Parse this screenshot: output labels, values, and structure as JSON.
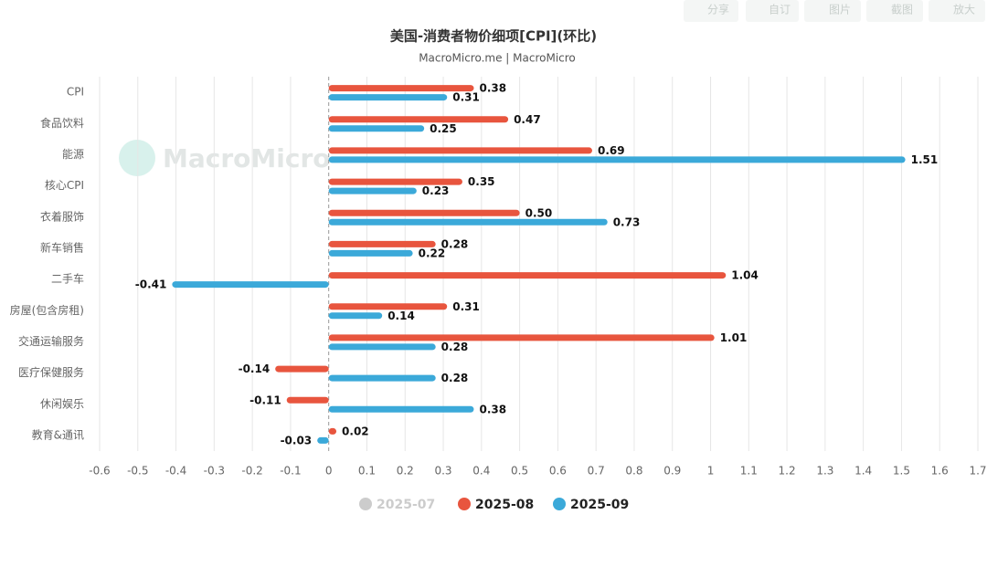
{
  "toolbar": [
    "分享",
    "自订",
    "图片",
    "截图",
    "放大"
  ],
  "watermark": "MacroMicro",
  "chart_data": {
    "type": "barh",
    "title": "美国-消费者物价细项[CPI](环比)",
    "subtitle": "MacroMicro.me | MacroMicro",
    "categories": [
      "CPI",
      "食品饮料",
      "能源",
      "核心CPI",
      "衣着服饰",
      "新车销售",
      "二手车",
      "房屋(包含房租)",
      "交通运输服务",
      "医疗保健服务",
      "休闲娱乐",
      "教育&通讯"
    ],
    "series": [
      {
        "name": "2025-07",
        "color": "#cccccc",
        "hidden": true
      },
      {
        "name": "2025-08",
        "color": "#e8553e",
        "values": [
          0.38,
          0.47,
          0.69,
          0.35,
          0.5,
          0.28,
          1.04,
          0.31,
          1.01,
          -0.14,
          -0.11,
          0.02
        ],
        "value_labels": [
          "0.38",
          "0.47",
          "0.69",
          "0.35",
          "0.50",
          "0.28",
          "1.04",
          "0.31",
          "1.01",
          "-0.14",
          "-0.11",
          "0.02"
        ]
      },
      {
        "name": "2025-09",
        "color": "#3ba9d9",
        "values": [
          0.31,
          0.25,
          1.51,
          0.23,
          0.73,
          0.22,
          -0.41,
          0.14,
          0.28,
          0.28,
          0.38,
          -0.03
        ],
        "value_labels": [
          "0.31",
          "0.25",
          "1.51",
          "0.23",
          "0.73",
          "0.22",
          "-0.41",
          "0.14",
          "0.28",
          "0.28",
          "0.38",
          "-0.03"
        ]
      }
    ],
    "xlim": [
      -0.6,
      1.7
    ],
    "xticks": [
      -0.6,
      -0.5,
      -0.4,
      -0.3,
      -0.2,
      -0.1,
      0,
      0.1,
      0.2,
      0.3,
      0.4,
      0.5,
      0.6,
      0.7,
      0.8,
      0.9,
      1,
      1.1,
      1.2,
      1.3,
      1.4,
      1.5,
      1.6,
      1.7
    ],
    "grid": true
  }
}
